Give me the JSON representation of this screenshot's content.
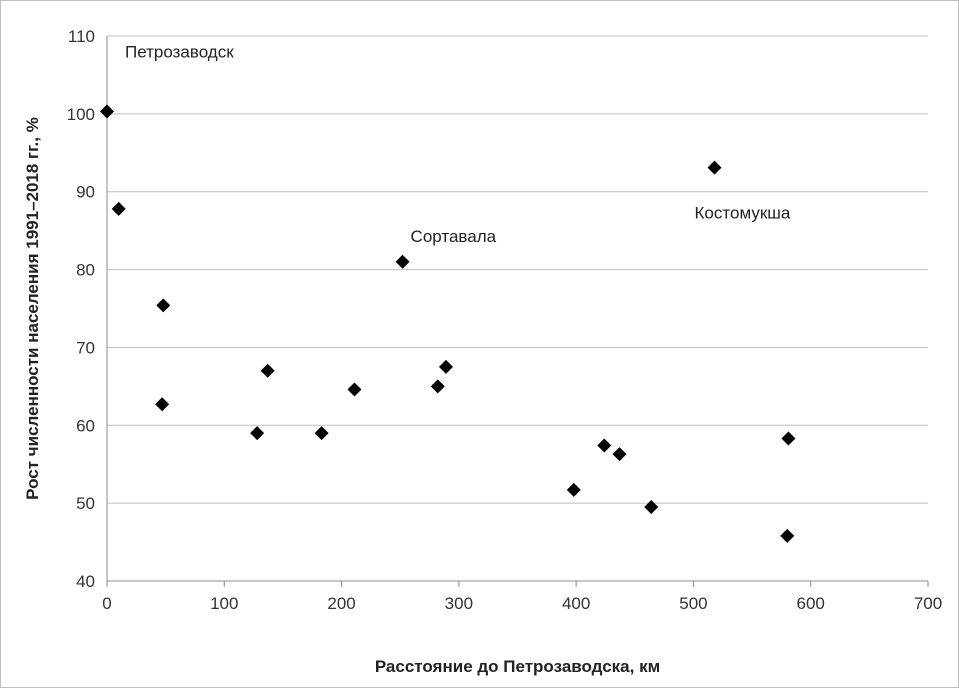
{
  "chart_data": {
    "type": "scatter",
    "xlabel": "Расстояние до Петрозаводска, км",
    "ylabel": "Рост численности населения 1991–2018 гг., %",
    "xlim": [
      0,
      700
    ],
    "ylim": [
      40,
      110
    ],
    "x_ticks": [
      "0",
      "100",
      "200",
      "300",
      "400",
      "500",
      "600",
      "700"
    ],
    "y_ticks": [
      "40",
      "50",
      "60",
      "70",
      "80",
      "90",
      "100",
      "110"
    ],
    "grid": "horizontal",
    "marker": "diamond",
    "color": "#000000",
    "points": [
      {
        "x": 0,
        "y": 100.3
      },
      {
        "x": 10,
        "y": 87.8
      },
      {
        "x": 48,
        "y": 75.4
      },
      {
        "x": 47,
        "y": 62.7
      },
      {
        "x": 128,
        "y": 59.0
      },
      {
        "x": 137,
        "y": 67.0
      },
      {
        "x": 183,
        "y": 59.0
      },
      {
        "x": 211,
        "y": 64.6
      },
      {
        "x": 252,
        "y": 81.0
      },
      {
        "x": 282,
        "y": 65.0
      },
      {
        "x": 289,
        "y": 67.5
      },
      {
        "x": 398,
        "y": 51.7
      },
      {
        "x": 424,
        "y": 57.4
      },
      {
        "x": 437,
        "y": 56.3
      },
      {
        "x": 464,
        "y": 49.5
      },
      {
        "x": 518,
        "y": 93.1
      },
      {
        "x": 581,
        "y": 58.3
      },
      {
        "x": 580,
        "y": 45.8
      }
    ],
    "annotations": [
      {
        "text": "Петрозаводск",
        "x": 0,
        "y": 100.3
      },
      {
        "text": "Сортавала",
        "x": 252,
        "y": 81.0
      },
      {
        "text": "Костомукша",
        "x": 518,
        "y": 93.1
      }
    ]
  }
}
